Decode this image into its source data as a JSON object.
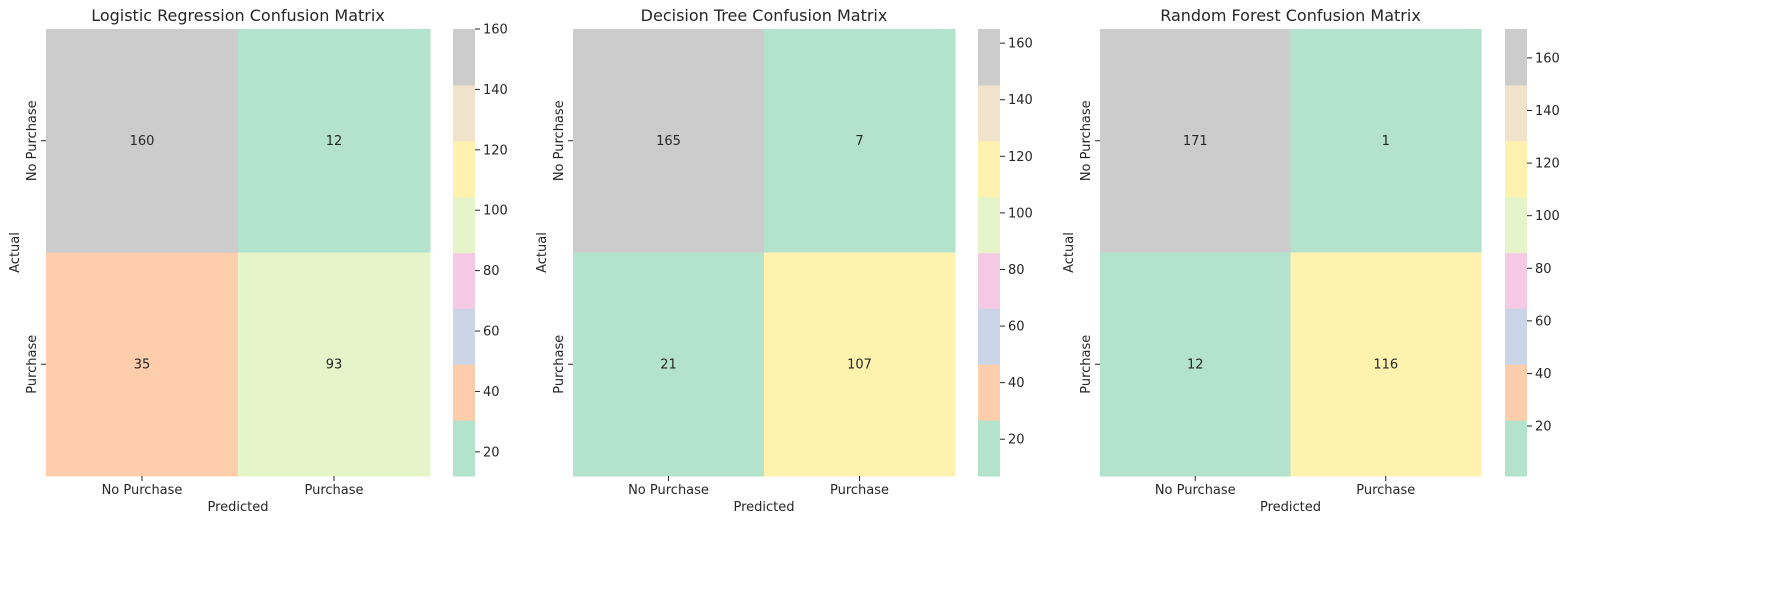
{
  "chart_data": [
    {
      "type": "heatmap",
      "title": "Logistic Regression Confusion Matrix",
      "xlabel": "Predicted",
      "ylabel": "Actual",
      "x_categories": [
        "No Purchase",
        "Purchase"
      ],
      "y_categories": [
        "No Purchase",
        "Purchase"
      ],
      "values": [
        [
          160,
          12
        ],
        [
          35,
          93
        ]
      ],
      "colorbar": {
        "range": [
          12,
          160
        ],
        "ticks": [
          20,
          40,
          60,
          80,
          100,
          120,
          140,
          160
        ]
      }
    },
    {
      "type": "heatmap",
      "title": "Decision Tree Confusion Matrix",
      "xlabel": "Predicted",
      "ylabel": "Actual",
      "x_categories": [
        "No Purchase",
        "Purchase"
      ],
      "y_categories": [
        "No Purchase",
        "Purchase"
      ],
      "values": [
        [
          165,
          7
        ],
        [
          21,
          107
        ]
      ],
      "colorbar": {
        "range": [
          7,
          165
        ],
        "ticks": [
          20,
          40,
          60,
          80,
          100,
          120,
          140,
          160
        ]
      }
    },
    {
      "type": "heatmap",
      "title": "Random Forest Confusion Matrix",
      "xlabel": "Predicted",
      "ylabel": "Actual",
      "x_categories": [
        "No Purchase",
        "Purchase"
      ],
      "y_categories": [
        "No Purchase",
        "Purchase"
      ],
      "values": [
        [
          171,
          1
        ],
        [
          12,
          116
        ]
      ],
      "colorbar": {
        "range": [
          1,
          171
        ],
        "ticks": [
          20,
          40,
          60,
          80,
          100,
          120,
          140,
          160
        ]
      }
    }
  ],
  "colormap": {
    "name": "Pastel2",
    "colors": [
      "#b3e2cd",
      "#fdcdac",
      "#cbd5e8",
      "#f4cae4",
      "#e6f5c9",
      "#fff2ae",
      "#f1e2cc",
      "#cccccc"
    ]
  }
}
